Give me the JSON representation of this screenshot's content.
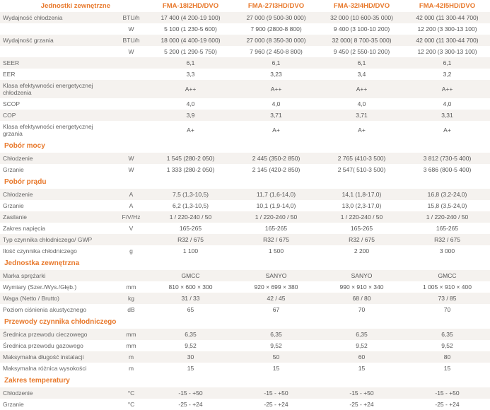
{
  "header": {
    "rowTitle": "Jednostki zewnętrzne",
    "models": [
      "FMA-18I2HD/DVO",
      "FMA-27I3HD/DVO",
      "FMA-32I4HD/DVO",
      "FMA-42I5HD/DVO"
    ]
  },
  "colors": {
    "accent": "#e8792c",
    "rowOdd": "#f5f2ef",
    "rowEven": "#ffffff",
    "text": "#555555"
  },
  "rows": [
    {
      "label": "Wydajność chłodzenia",
      "unit": "BTU/h",
      "v": [
        "17 400 (4 200-19 100)",
        "27 000 (9 500-30 000)",
        "32 000 (10 600-35 000)",
        "42 000 (11 300-44 700)"
      ],
      "bg": "odd"
    },
    {
      "label": "",
      "unit": "W",
      "v": [
        "5 100 (1 230-5 600)",
        "7 900 (2800-8 800)",
        "9 400 (3 100-10 200)",
        "12 200 (3 300-13 100)"
      ],
      "bg": "even"
    },
    {
      "label": "Wydajność grzania",
      "unit": "BTU/h",
      "v": [
        "18 000 (4 400-19 600)",
        "27 000 (8 350-30 000)",
        "32 000( 8 700-35 000)",
        "42 000 (11 300-44 700)"
      ],
      "bg": "odd"
    },
    {
      "label": "",
      "unit": "W",
      "v": [
        "5 200 (1 290-5 750)",
        "7 960 (2 450-8 800)",
        "9 450 (2 550-10 200)",
        "12 200 (3 300-13 100)"
      ],
      "bg": "even"
    },
    {
      "label": "SEER",
      "unit": "",
      "v": [
        "6,1",
        "6,1",
        "6,1",
        "6,1"
      ],
      "bg": "odd"
    },
    {
      "label": "EER",
      "unit": "",
      "v": [
        "3,3",
        "3,23",
        "3,4",
        "3,2"
      ],
      "bg": "even"
    },
    {
      "label": "Klasa efektywności energetycznej chłodzenia",
      "unit": "",
      "v": [
        "A++",
        "A++",
        "A++",
        "A++"
      ],
      "bg": "odd"
    },
    {
      "label": "SCOP",
      "unit": "",
      "v": [
        "4,0",
        "4,0",
        "4,0",
        "4,0"
      ],
      "bg": "even"
    },
    {
      "label": "COP",
      "unit": "",
      "v": [
        "3,9",
        "3,71",
        "3,71",
        "3,31"
      ],
      "bg": "odd"
    },
    {
      "label": "Klasa efektywności energetycznej grzania",
      "unit": "",
      "v": [
        "A+",
        "A+",
        "A+",
        "A+"
      ],
      "bg": "even"
    },
    {
      "section": "Pobór mocy"
    },
    {
      "label": "Chłodzenie",
      "unit": "W",
      "v": [
        "1 545 (280-2 050)",
        "2 445 (350-2 850)",
        "2 765 (410-3 500)",
        "3 812 (730-5 400)"
      ],
      "bg": "odd"
    },
    {
      "label": "Grzanie",
      "unit": "W",
      "v": [
        "1 333 (280-2 050)",
        "2 145 (420-2 850)",
        "2 547( 510-3 500)",
        "3 686 (800-5 400)"
      ],
      "bg": "even"
    },
    {
      "section": "Pobór prądu"
    },
    {
      "label": "Chłodzenie",
      "unit": "A",
      "v": [
        "7,5 (1,3-10,5)",
        "11,7 (1,6-14,0)",
        "14,1 (1,8-17,0)",
        "16,8 (3,2-24,0)"
      ],
      "bg": "odd"
    },
    {
      "label": "Grzanie",
      "unit": "A",
      "v": [
        "6,2 (1,3-10,5)",
        "10,1 (1,9-14,0)",
        "13,0 (2,3-17,0)",
        "15,8 (3,5-24,0)"
      ],
      "bg": "even"
    },
    {
      "label": "Zasilanie",
      "unit": "F/V/Hz",
      "v": [
        "1 / 220-240 / 50",
        "1 / 220-240 / 50",
        "1 / 220-240 / 50",
        "1 / 220-240 / 50"
      ],
      "bg": "odd"
    },
    {
      "label": "Zakres napięcia",
      "unit": "V",
      "v": [
        "165-265",
        "165-265",
        "165-265",
        "165-265"
      ],
      "bg": "even"
    },
    {
      "label": "Typ czynnika chłodniczego/ GWP",
      "unit": "",
      "v": [
        "R32 / 675",
        "R32 / 675",
        "R32 / 675",
        "R32 / 675"
      ],
      "bg": "odd"
    },
    {
      "label": "Ilość czynnika chłodniczego",
      "unit": "g",
      "v": [
        "1 100",
        "1 500",
        "2 200",
        "3 000"
      ],
      "bg": "even"
    },
    {
      "section": "Jednostka zewnętrzna"
    },
    {
      "label": "Marka sprężarki",
      "unit": "",
      "v": [
        "GMCC",
        "SANYO",
        "SANYO",
        "GMCC"
      ],
      "bg": "odd"
    },
    {
      "label": "Wymiary (Szer./Wys./Głęb.)",
      "unit": "mm",
      "v": [
        "810 × 600 × 300",
        "920 × 699 × 380",
        "990 × 910 × 340",
        "1 005 × 910 × 400"
      ],
      "bg": "even"
    },
    {
      "label": "Waga (Netto / Brutto)",
      "unit": "kg",
      "v": [
        "31 / 33",
        "42 / 45",
        "68 / 80",
        "73 / 85"
      ],
      "bg": "odd"
    },
    {
      "label": "Poziom ciśnienia akustycznego",
      "unit": "dB",
      "v": [
        "65",
        "67",
        "70",
        "70"
      ],
      "bg": "even"
    },
    {
      "section": "Przewody czynnika chłodniczego"
    },
    {
      "label": "Średnica przewodu cieczowego",
      "unit": "mm",
      "v": [
        "6,35",
        "6,35",
        "6,35",
        "6,35"
      ],
      "bg": "odd"
    },
    {
      "label": "Średnica przewodu gazowego",
      "unit": "mm",
      "v": [
        "9,52",
        "9,52",
        "9,52",
        "9,52"
      ],
      "bg": "even"
    },
    {
      "label": "Maksymalna długość instalacji",
      "unit": "m",
      "v": [
        "30",
        "50",
        "60",
        "80"
      ],
      "bg": "odd"
    },
    {
      "label": "Maksymalna różnica wysokości",
      "unit": "m",
      "v": [
        "15",
        "15",
        "15",
        "15"
      ],
      "bg": "even"
    },
    {
      "section": "Zakres temperatury"
    },
    {
      "label": "Chłodzenie",
      "unit": "°C",
      "v": [
        "-15 - +50",
        "-15 - +50",
        "-15 - +50",
        "-15 - +50"
      ],
      "bg": "odd"
    },
    {
      "label": "Grzanie",
      "unit": "°C",
      "v": [
        "-25 - +24",
        "-25 - +24",
        "-25 - +24",
        "-25 - +24"
      ],
      "bg": "even"
    }
  ]
}
